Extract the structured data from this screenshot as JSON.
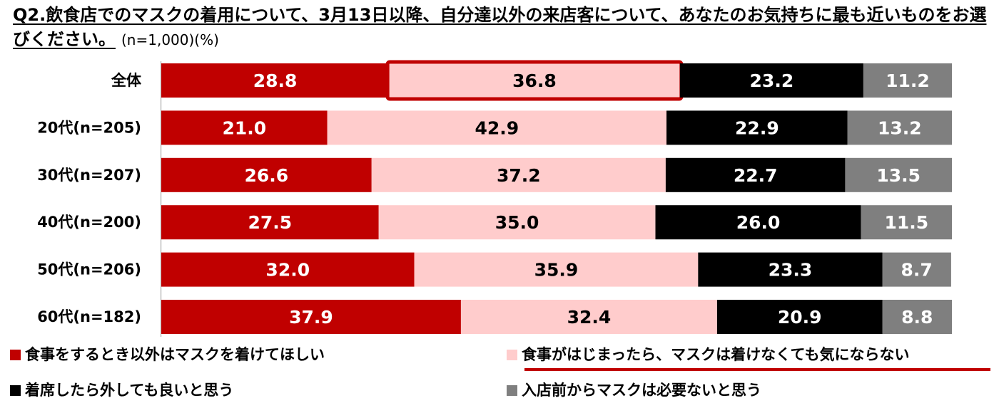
{
  "title": {
    "text": "Q2.飲食店でのマスクの着用について、3月13日以降、自分達以外の来店客について、あなたのお気持ちに最も近いものをお選びください。",
    "note": "(n=1,000)(%)"
  },
  "chart_data": {
    "type": "bar",
    "orientation": "horizontal-stacked-100",
    "categories": [
      "全体",
      "20代(n=205)",
      "30代(n=207)",
      "40代(n=200)",
      "50代(n=206)",
      "60代(n=182)"
    ],
    "series": [
      {
        "name": "食事をするとき以外はマスクを着けてほしい",
        "color": "#c00000",
        "values": [
          28.8,
          21.0,
          26.6,
          27.5,
          32.0,
          37.9
        ],
        "labels": [
          "28.8",
          "21.0",
          "26.6",
          "27.5",
          "32.0",
          "37.9"
        ]
      },
      {
        "name": "食事がはじまったら、マスクは着けなくても気にならない",
        "color": "#ffcccc",
        "values": [
          36.8,
          42.9,
          37.2,
          35.0,
          35.9,
          32.4
        ],
        "labels": [
          "36.8",
          "42.9",
          "37.2",
          "35.0",
          "35.9",
          "32.4"
        ]
      },
      {
        "name": "着席したら外しても良いと思う",
        "color": "#000000",
        "values": [
          23.2,
          22.9,
          22.7,
          26.0,
          23.3,
          20.9
        ],
        "labels": [
          "23.2",
          "22.9",
          "22.7",
          "26.0",
          "23.3",
          "20.9"
        ]
      },
      {
        "name": "入店前からマスクは必要ないと思う",
        "color": "#7f7f7f",
        "values": [
          11.2,
          13.2,
          13.5,
          11.5,
          8.7,
          8.8
        ],
        "labels": [
          "11.2",
          "13.2",
          "13.5",
          "11.5",
          "8.7",
          "8.8"
        ]
      }
    ],
    "label_colors": [
      "#ffffff",
      "#000000",
      "#ffffff",
      "#ffffff"
    ],
    "highlight": {
      "category_index": 0,
      "series_index": 1,
      "color": "#c00000"
    },
    "legend_highlight_series": 1,
    "xlim": [
      0,
      100
    ],
    "legend": "bottom",
    "grid": false
  }
}
